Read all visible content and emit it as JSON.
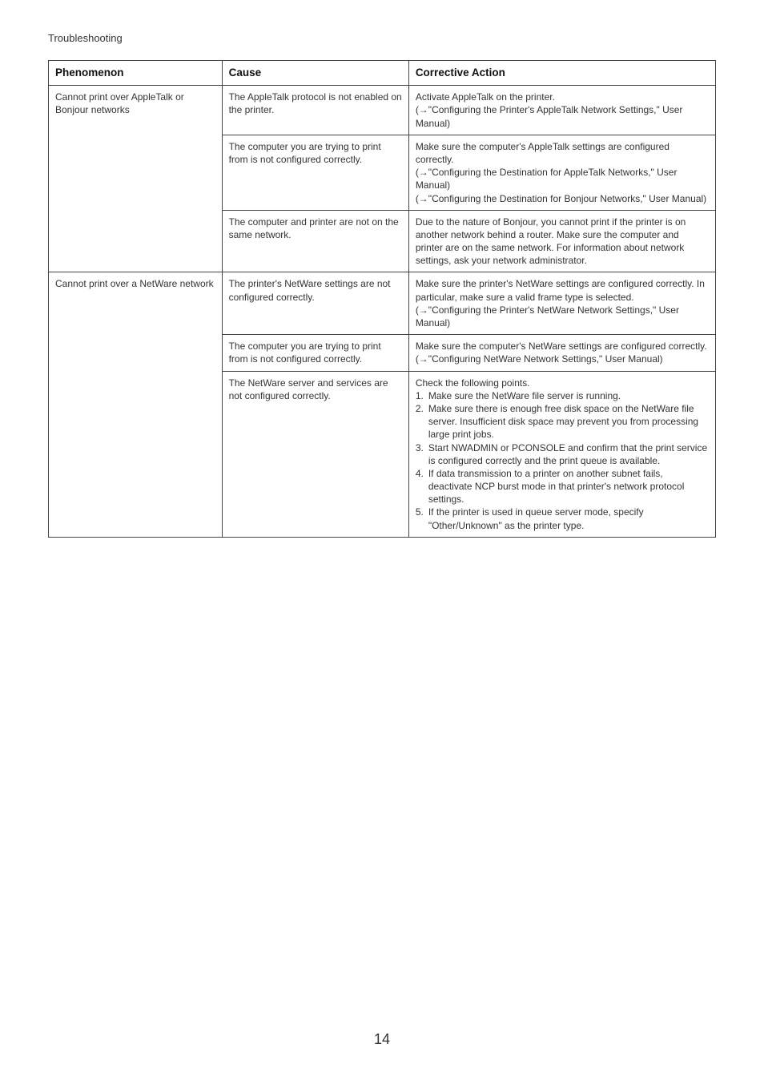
{
  "section_title": "Troubleshooting",
  "page_number": "14",
  "columns": {
    "phenomenon": "Phenomenon",
    "cause": "Cause",
    "action": "Corrective Action"
  },
  "rows": [
    {
      "phenomenon": "Cannot print over AppleTalk or Bonjour networks",
      "sub": [
        {
          "cause": "The AppleTalk protocol is not enabled on the printer.",
          "action_lines": [
            "Activate AppleTalk on the printer.",
            "(→\"Configuring the Printer's AppleTalk Network Settings,\" User Manual)"
          ]
        },
        {
          "cause": "The computer you are trying to print from is not configured correctly.",
          "action_lines": [
            "Make sure the computer's AppleTalk settings are configured correctly.",
            "(→\"Configuring the Destination for AppleTalk Networks,\" User Manual)",
            "(→\"Configuring the Destination for Bonjour Networks,\" User Manual)"
          ]
        },
        {
          "cause": "The computer and printer are not on the same network.",
          "action_lines": [
            "Due to the nature of Bonjour, you cannot print if the printer is on another network behind a router. Make sure the computer and printer are on the same network. For information about network settings, ask your network administrator."
          ]
        }
      ]
    },
    {
      "phenomenon": "Cannot print over a NetWare network",
      "sub": [
        {
          "cause": "The printer's NetWare settings are not configured correctly.",
          "action_lines": [
            "Make sure the printer's NetWare settings are configured correctly. In particular, make sure a valid frame type is selected.",
            "(→\"Configuring the Printer's NetWare Network Settings,\" User Manual)"
          ]
        },
        {
          "cause": "The computer you are trying to print from is not configured correctly.",
          "action_lines": [
            "Make sure the computer's NetWare settings are configured correctly.",
            "(→\"Configuring NetWare Network Settings,\" User Manual)"
          ]
        },
        {
          "cause": "The NetWare server and services are not configured correctly.",
          "action_intro": "Check the following points.",
          "action_numbered": [
            {
              "n": "1.",
              "text": "Make sure the NetWare file server is running."
            },
            {
              "n": "2.",
              "text": "Make sure there is enough free disk space on the NetWare file server. Insufficient disk space may prevent you from processing large print jobs."
            },
            {
              "n": "3.",
              "text": "Start NWADMIN or PCONSOLE and confirm that the print service is configured correctly and the print queue is available."
            },
            {
              "n": "4.",
              "text": "If data transmission to a printer on another subnet fails, deactivate NCP burst mode in that printer's network protocol settings."
            },
            {
              "n": "5.",
              "text": "If the printer is used in queue server mode, specify \"Other/Unknown\" as the printer type."
            }
          ]
        }
      ]
    }
  ]
}
